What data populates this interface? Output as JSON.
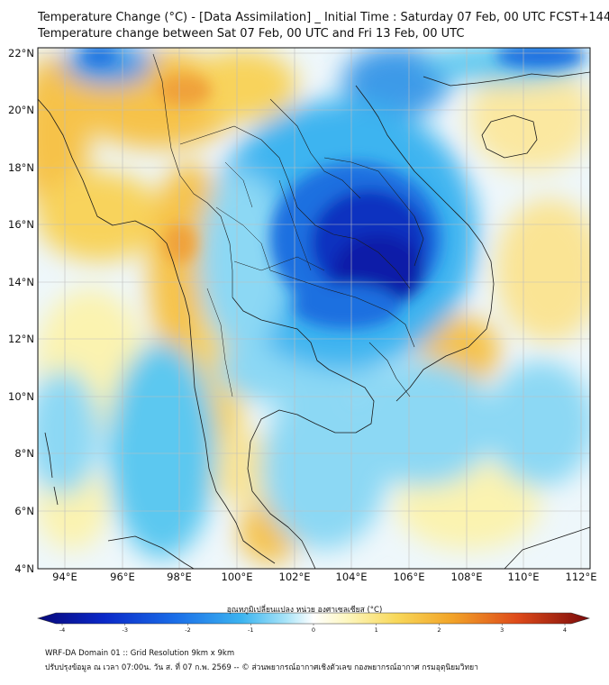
{
  "header": {
    "title_line1": "Temperature Change (°C) - [Data Assimilation] _ Initial Time : Saturday 07 Feb, 00 UTC FCST+144",
    "title_line2": "Temperature change between Sat 07 Feb, 00 UTC and Fri 13 Feb, 00 UTC"
  },
  "map": {
    "lon_ticks": [
      "94°E",
      "96°E",
      "98°E",
      "100°E",
      "102°E",
      "104°E",
      "106°E",
      "108°E",
      "110°E",
      "112°E"
    ],
    "lat_ticks": [
      "22°N",
      "20°N",
      "18°N",
      "16°N",
      "14°N",
      "12°N",
      "10°N",
      "8°N",
      "6°N",
      "4°N"
    ],
    "colors": {
      "cold_deep": "#0a1aa8",
      "cold": "#1f6fe0",
      "cool": "#5cc8f0",
      "neutral": "#eef7fb",
      "warm_light": "#fbf3b0",
      "warm": "#f6c24a",
      "hot": "#e0702a",
      "border": "#1a1a1a"
    }
  },
  "colorbar": {
    "title": "อุณหภูมิเปลี่ยนแปลง หน่วย องศาเซลเซียส (°C)",
    "labels": [
      "-4",
      "-3",
      "-2",
      "-1",
      "0",
      "1",
      "2",
      "3",
      "4"
    ]
  },
  "footer": {
    "line1": "WRF-DA Domain 01 :: Grid Resolution 9km x 9km",
    "line2": "ปรับปรุงข้อมูล ณ เวลา 07:00น. วัน ส. ที่ 07 ก.พ. 2569 -- © ส่วนพยากรณ์อากาศเชิงตัวเลข กองพยากรณ์อากาศ กรมอุตุนิยมวิทยา"
  }
}
